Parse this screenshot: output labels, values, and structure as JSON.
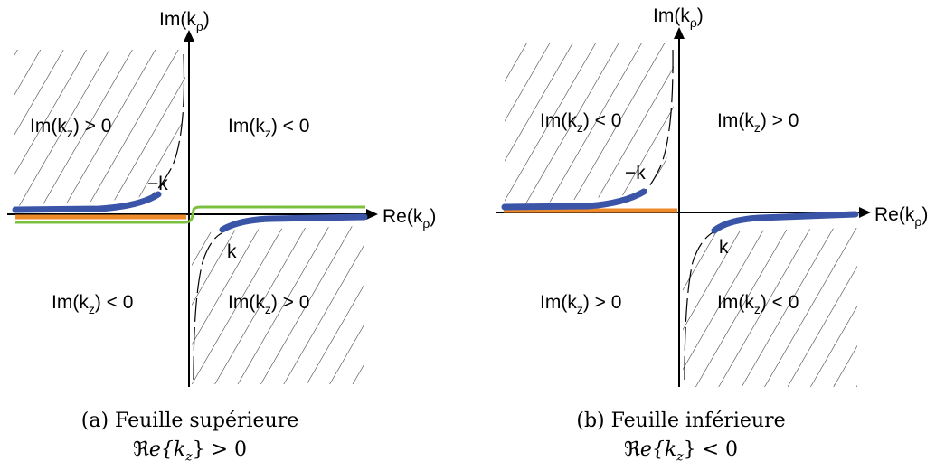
{
  "panels": [
    {
      "axis_imag_label": "Im(k",
      "axis_imag_sub": "ρ",
      "axis_real_label": "Re(k",
      "axis_real_sub": "ρ",
      "quadrants": {
        "top_left": {
          "text": "Im(k",
          "sub": "z",
          "rest": ") > 0"
        },
        "top_right": {
          "text": "Im(k",
          "sub": "z",
          "rest": ") < 0"
        },
        "bottom_left": {
          "text": "Im(k",
          "sub": "z",
          "rest": ") < 0"
        },
        "bottom_right": {
          "text": "Im(k",
          "sub": "z",
          "rest": ") > 0"
        }
      },
      "branch_labels": {
        "minus_k": "−k",
        "k": "k"
      },
      "caption_line1": "(a) Feuille supérieure",
      "caption_line2": "ℜe{k_z} > 0",
      "caption_re": "ℜ",
      "caption_e": "e{",
      "caption_kz": "k",
      "caption_z": "z",
      "caption_rel": "} > 0"
    },
    {
      "axis_imag_label": "Im(k",
      "axis_imag_sub": "ρ",
      "axis_real_label": "Re(k",
      "axis_real_sub": "ρ",
      "quadrants": {
        "top_left": {
          "text": "Im(k",
          "sub": "z",
          "rest": ") < 0"
        },
        "top_right": {
          "text": "Im(k",
          "sub": "z",
          "rest": ") > 0"
        },
        "bottom_left": {
          "text": "Im(k",
          "sub": "z",
          "rest": ") > 0"
        },
        "bottom_right": {
          "text": "Im(k",
          "sub": "z",
          "rest": ") < 0"
        }
      },
      "branch_labels": {
        "minus_k": "−k",
        "k": "k"
      },
      "caption_line1": "(b) Feuille inférieure",
      "caption_line2": "ℜe{k_z} < 0",
      "caption_re": "ℜ",
      "caption_e": "e{",
      "caption_kz": "k",
      "caption_z": "z",
      "caption_rel": "} < 0"
    }
  ],
  "colors": {
    "branch": "#3a55a8",
    "cut_orange": "#ee8a2a",
    "contour_green": "#7cc040",
    "axis": "#000000",
    "hatch": "#333333"
  }
}
